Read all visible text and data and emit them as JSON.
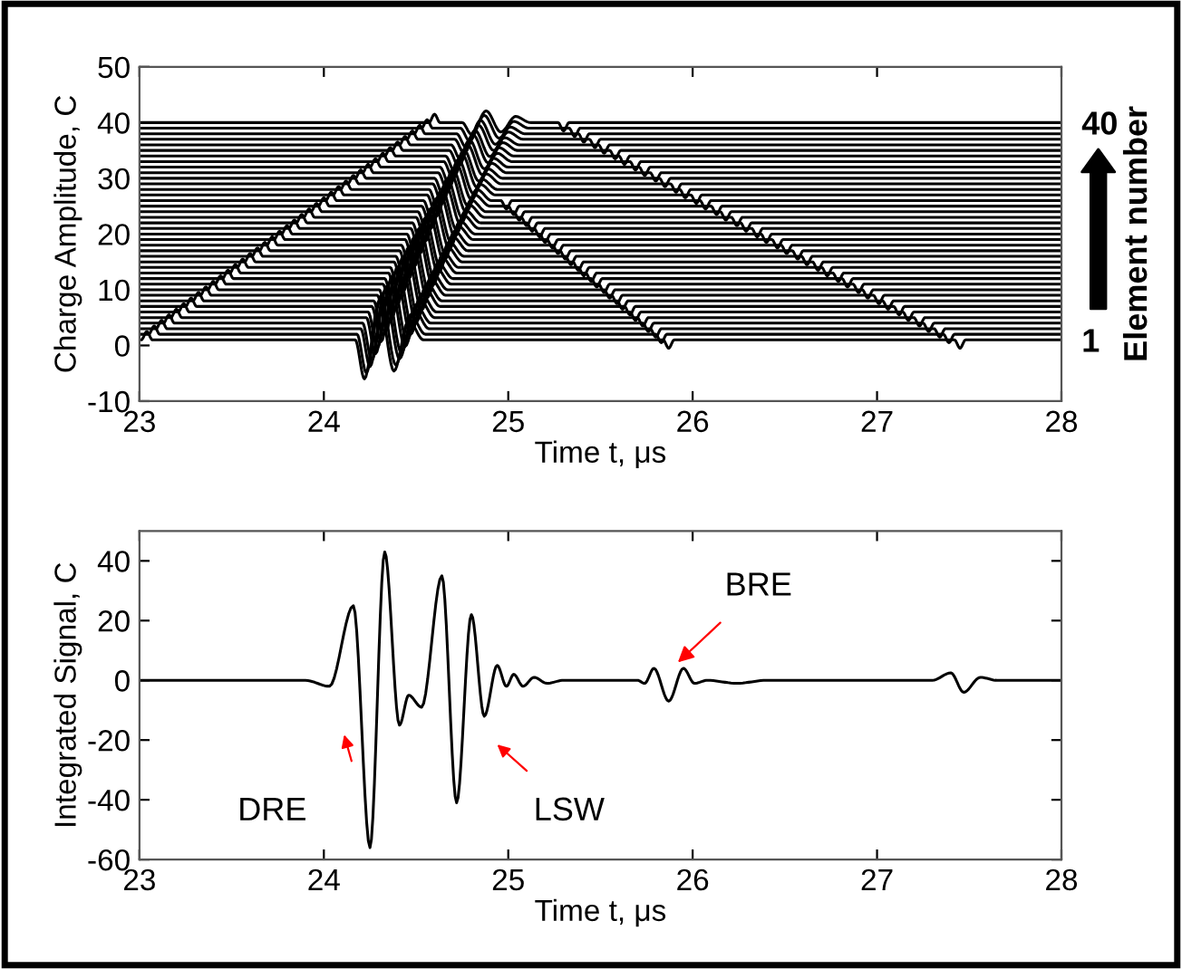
{
  "chart_data": [
    {
      "type": "line",
      "xlabel": "Time t, μs",
      "ylabel": "Charge Amplitude, C",
      "y2label": "Element number",
      "xlim": [
        23,
        28
      ],
      "xticks": [
        23,
        24,
        25,
        26,
        27,
        28
      ],
      "ylim": [
        -10,
        50
      ],
      "yticks": [
        -10,
        0,
        10,
        20,
        30,
        40,
        50
      ],
      "y2lim": [
        -10,
        50
      ],
      "y2ticks": [
        1,
        40
      ],
      "series": [
        {
          "color": "#000000",
          "x": [
            23,
            23.01,
            23.04,
            23.07,
            24.17,
            24.22,
            24.3,
            24.38,
            24.46,
            24.54,
            25.84,
            25.87,
            25.9,
            27.42,
            27.45,
            27.48,
            28
          ],
          "values": [
            1,
            1,
            2.5,
            1,
            1,
            -6,
            8,
            -4.6,
            4.5,
            1,
            1,
            -0.5,
            1,
            1,
            -0.5,
            1,
            1
          ]
        },
        {
          "color": "#000000",
          "x": [
            23,
            23.05,
            23.08,
            23.11,
            24.18,
            24.23,
            24.31,
            24.39,
            24.47,
            24.55,
            25.8,
            25.83,
            25.86,
            27.36,
            27.39,
            27.42,
            28
          ],
          "values": [
            2,
            2,
            3.5,
            2,
            2,
            -4.9,
            8.9,
            -3.5,
            5.5,
            2,
            2,
            0.5,
            2,
            2,
            0.5,
            2,
            2
          ]
        },
        {
          "color": "#000000",
          "x": [
            23,
            23.09,
            23.12,
            23.15,
            24.2,
            24.25,
            24.33,
            24.41,
            24.49,
            24.57,
            25.77,
            25.8,
            25.83,
            27.31,
            27.34,
            27.37,
            28
          ],
          "values": [
            3,
            3,
            4.5,
            3,
            3,
            -3.8,
            9.8,
            -2.4,
            6.4,
            3,
            3,
            1.5,
            3,
            3,
            1.5,
            3,
            3
          ]
        },
        {
          "color": "#000000",
          "x": [
            23,
            23.13,
            23.16,
            23.19,
            24.21,
            24.26,
            24.34,
            24.42,
            24.5,
            24.58,
            25.73,
            25.76,
            25.79,
            27.25,
            27.28,
            27.31,
            28
          ],
          "values": [
            4,
            4,
            5.5,
            4,
            4,
            -2.6,
            10.6,
            -1.3,
            7.3,
            4,
            4,
            2.5,
            4,
            4,
            2.5,
            4,
            4
          ]
        },
        {
          "color": "#000000",
          "x": [
            23,
            23.17,
            23.2,
            23.23,
            24.23,
            24.28,
            24.36,
            24.44,
            24.52,
            24.6,
            25.7,
            25.73,
            25.76,
            27.2,
            27.23,
            27.26,
            28
          ],
          "values": [
            5,
            5,
            6.5,
            5,
            5,
            -1.5,
            11.5,
            -0.2,
            8.3,
            5,
            5,
            3.5,
            5,
            5,
            3.5,
            5,
            5
          ]
        },
        {
          "color": "#000000",
          "x": [
            23,
            23.21,
            23.24,
            23.27,
            24.24,
            24.29,
            24.37,
            24.45,
            24.53,
            24.61,
            25.66,
            25.69,
            25.72,
            27.14,
            27.17,
            27.2,
            28
          ],
          "values": [
            6,
            6,
            7.5,
            6,
            6,
            -0.4,
            12.4,
            0.9,
            9.2,
            6,
            6,
            4.5,
            6,
            6,
            4.5,
            6,
            6
          ]
        },
        {
          "color": "#000000",
          "x": [
            23,
            23.25,
            23.28,
            23.31,
            24.26,
            24.31,
            24.39,
            24.47,
            24.55,
            24.63,
            25.63,
            25.66,
            25.69,
            27.09,
            27.12,
            27.15,
            28
          ],
          "values": [
            7,
            7,
            8.5,
            7,
            7,
            0.7,
            13.3,
            2.0,
            10.2,
            7,
            7,
            5.5,
            7,
            7,
            5.5,
            7,
            7
          ]
        },
        {
          "color": "#000000",
          "x": [
            23,
            23.29,
            23.32,
            23.35,
            24.27,
            24.32,
            24.4,
            24.48,
            24.56,
            24.64,
            25.59,
            25.62,
            25.65,
            27.03,
            27.06,
            27.09,
            28
          ],
          "values": [
            8,
            8,
            9.5,
            8,
            8,
            1.9,
            14.1,
            3.1,
            11.1,
            8,
            8,
            6.5,
            8,
            8,
            6.5,
            8,
            8
          ]
        },
        {
          "color": "#000000",
          "x": [
            23,
            23.33,
            23.36,
            23.39,
            24.29,
            24.34,
            24.42,
            24.5,
            24.58,
            24.66,
            25.56,
            25.59,
            25.62,
            26.98,
            27.01,
            27.04,
            28
          ],
          "values": [
            9,
            9,
            10.5,
            9,
            9,
            3,
            15,
            4.2,
            12,
            9,
            9,
            7.5,
            9,
            9,
            7.5,
            9,
            9
          ]
        },
        {
          "color": "#000000",
          "x": [
            23,
            23.37,
            23.4,
            23.43,
            24.3,
            24.35,
            24.43,
            24.51,
            24.59,
            24.67,
            25.52,
            25.55,
            25.58,
            26.92,
            26.95,
            26.98,
            28
          ],
          "values": [
            10,
            10,
            11.5,
            10,
            10,
            4.1,
            15.9,
            5.3,
            13.0,
            10,
            10,
            8.5,
            10,
            10,
            8.5,
            10,
            10
          ]
        },
        {
          "color": "#000000",
          "x": [
            23,
            23.41,
            23.44,
            23.47,
            24.32,
            24.37,
            24.45,
            24.53,
            24.61,
            24.69,
            25.49,
            25.52,
            25.55,
            26.87,
            26.9,
            26.93,
            28
          ],
          "values": [
            11,
            11,
            12.5,
            11,
            11,
            5.2,
            16.8,
            6.4,
            13.9,
            11,
            11,
            9.5,
            11,
            11,
            9.5,
            11,
            11
          ]
        },
        {
          "color": "#000000",
          "x": [
            23,
            23.45,
            23.48,
            23.51,
            24.33,
            24.38,
            24.46,
            24.54,
            24.62,
            24.7,
            25.45,
            25.48,
            25.51,
            26.81,
            26.84,
            26.87,
            28
          ],
          "values": [
            12,
            12,
            13.5,
            12,
            12,
            6.4,
            17.6,
            7.5,
            14.8,
            12,
            12,
            10.5,
            12,
            12,
            10.5,
            12,
            12
          ]
        },
        {
          "color": "#000000",
          "x": [
            23,
            23.49,
            23.52,
            23.55,
            24.35,
            24.4,
            24.48,
            24.56,
            24.64,
            24.72,
            25.42,
            25.45,
            25.48,
            26.76,
            26.79,
            26.82,
            28
          ],
          "values": [
            13,
            13,
            14.5,
            13,
            13,
            7.5,
            18.5,
            8.6,
            15.8,
            13,
            13,
            11.5,
            13,
            13,
            11.5,
            13,
            13
          ]
        },
        {
          "color": "#000000",
          "x": [
            23,
            23.53,
            23.56,
            23.59,
            24.36,
            24.41,
            24.49,
            24.57,
            24.65,
            24.73,
            25.38,
            25.41,
            25.44,
            26.7,
            26.73,
            26.76,
            28
          ],
          "values": [
            14,
            14,
            15.5,
            14,
            14,
            8.6,
            19.4,
            9.7,
            16.7,
            14,
            14,
            12.5,
            14,
            14,
            12.5,
            14,
            14
          ]
        },
        {
          "color": "#000000",
          "x": [
            23,
            23.57,
            23.6,
            23.63,
            24.38,
            24.43,
            24.51,
            24.59,
            24.67,
            24.75,
            25.35,
            25.38,
            25.41,
            26.65,
            26.68,
            26.71,
            28
          ],
          "values": [
            15,
            15,
            16.5,
            15,
            15,
            9.7,
            20.3,
            10.8,
            17.7,
            15,
            15,
            13.5,
            15,
            15,
            13.5,
            15,
            15
          ]
        },
        {
          "color": "#000000",
          "x": [
            23,
            23.61,
            23.64,
            23.67,
            24.39,
            24.44,
            24.52,
            24.6,
            24.68,
            24.76,
            25.31,
            25.34,
            25.37,
            26.59,
            26.62,
            26.65,
            28
          ],
          "values": [
            16,
            16,
            17.5,
            16,
            16,
            10.9,
            21.1,
            11.9,
            18.6,
            16,
            16,
            14.5,
            16,
            16,
            14.5,
            16,
            16
          ]
        },
        {
          "color": "#000000",
          "x": [
            23,
            23.65,
            23.68,
            23.71,
            24.41,
            24.46,
            24.54,
            24.62,
            24.7,
            24.78,
            25.28,
            25.31,
            25.34,
            26.54,
            26.57,
            26.6,
            28
          ],
          "values": [
            17,
            17,
            18.5,
            17,
            17,
            12,
            22,
            13,
            19.5,
            17,
            17,
            15.5,
            17,
            17,
            15.5,
            17,
            17
          ]
        },
        {
          "color": "#000000",
          "x": [
            23,
            23.69,
            23.72,
            23.75,
            24.42,
            24.47,
            24.55,
            24.63,
            24.71,
            24.79,
            25.24,
            25.27,
            25.3,
            26.48,
            26.51,
            26.54,
            28
          ],
          "values": [
            18,
            18,
            19.5,
            18,
            18,
            13.1,
            22.9,
            14.1,
            20.5,
            18,
            18,
            16.5,
            18,
            18,
            16.5,
            18,
            18
          ]
        },
        {
          "color": "#000000",
          "x": [
            23,
            23.73,
            23.76,
            23.79,
            24.44,
            24.49,
            24.57,
            24.65,
            24.73,
            24.81,
            25.21,
            25.24,
            25.27,
            26.43,
            26.46,
            26.49,
            28
          ],
          "values": [
            19,
            19,
            20.5,
            19,
            19,
            14.2,
            23.8,
            15.2,
            21.4,
            19,
            19,
            17.5,
            19,
            19,
            17.5,
            19,
            19
          ]
        },
        {
          "color": "#000000",
          "x": [
            23,
            23.77,
            23.8,
            23.83,
            24.45,
            24.5,
            24.58,
            24.66,
            24.74,
            24.82,
            25.17,
            25.2,
            25.23,
            26.37,
            26.4,
            26.43,
            28
          ],
          "values": [
            20,
            20,
            21.5,
            20,
            20,
            15.4,
            24.6,
            16.3,
            22.3,
            20,
            20,
            18.5,
            20,
            20,
            18.5,
            20,
            20
          ]
        },
        {
          "color": "#000000",
          "x": [
            23,
            23.81,
            23.84,
            23.87,
            24.47,
            24.52,
            24.6,
            24.68,
            24.76,
            24.84,
            25.14,
            25.17,
            25.2,
            26.32,
            26.35,
            26.38,
            28
          ],
          "values": [
            21,
            21,
            22.5,
            21,
            21,
            16.5,
            25.5,
            17.4,
            23.3,
            21,
            21,
            19.5,
            21,
            21,
            19.5,
            21,
            21
          ]
        },
        {
          "color": "#000000",
          "x": [
            23,
            23.85,
            23.88,
            23.91,
            24.48,
            24.53,
            24.61,
            24.69,
            24.77,
            24.85,
            25.1,
            25.13,
            25.16,
            26.26,
            26.29,
            26.32,
            28
          ],
          "values": [
            22,
            22,
            23.5,
            22,
            22,
            17.6,
            26.4,
            18.5,
            24.2,
            22,
            22,
            20.5,
            22,
            22,
            20.5,
            22,
            22
          ]
        },
        {
          "color": "#000000",
          "x": [
            23,
            23.89,
            23.92,
            23.95,
            24.5,
            24.55,
            24.63,
            24.71,
            24.79,
            24.87,
            25.07,
            25.1,
            25.13,
            26.21,
            26.24,
            26.27,
            28
          ],
          "values": [
            23,
            23,
            24.5,
            23,
            23,
            18.7,
            27.3,
            19.6,
            25.2,
            23,
            23,
            21.5,
            23,
            23,
            21.5,
            23,
            23
          ]
        },
        {
          "color": "#000000",
          "x": [
            23,
            23.93,
            23.96,
            23.99,
            24.51,
            24.56,
            24.64,
            24.72,
            24.8,
            24.88,
            25.03,
            25.06,
            25.09,
            26.15,
            26.18,
            26.21,
            28
          ],
          "values": [
            24,
            24,
            25.5,
            24,
            24,
            19.9,
            28.1,
            20.7,
            26.1,
            24,
            24,
            22.5,
            24,
            24,
            22.5,
            24,
            24
          ]
        },
        {
          "color": "#000000",
          "x": [
            23,
            23.97,
            24.0,
            24.03,
            24.53,
            24.58,
            24.66,
            24.74,
            24.82,
            24.9,
            25.0,
            25.03,
            25.06,
            26.1,
            26.13,
            26.16,
            28
          ],
          "values": [
            25,
            25,
            26.5,
            25,
            25,
            21,
            29,
            21.8,
            27,
            25,
            25,
            23.5,
            25,
            25,
            23.5,
            25,
            25
          ]
        },
        {
          "color": "#000000",
          "x": [
            23,
            24.01,
            24.04,
            24.07,
            24.54,
            24.59,
            24.67,
            24.75,
            24.83,
            24.91,
            24.96,
            24.99,
            25.02,
            26.04,
            26.07,
            26.1,
            28
          ],
          "values": [
            26,
            26,
            27.5,
            26,
            26,
            22.1,
            29.9,
            22.9,
            28.0,
            26,
            26,
            24.5,
            26,
            26,
            24.5,
            26,
            26
          ]
        },
        {
          "color": "#000000",
          "x": [
            23,
            24.05,
            24.08,
            24.11,
            24.56,
            24.61,
            24.69,
            24.77,
            24.85,
            24.93,
            25.99,
            26.02,
            26.05,
            28
          ],
          "values": [
            27,
            27,
            28.5,
            27,
            27,
            23.2,
            30.8,
            24.0,
            28.9,
            27,
            27,
            25.5,
            27,
            27
          ]
        },
        {
          "color": "#000000",
          "x": [
            23,
            24.09,
            24.12,
            24.15,
            24.57,
            24.62,
            24.7,
            24.78,
            24.86,
            24.94,
            25.93,
            25.96,
            25.99,
            28
          ],
          "values": [
            28,
            28,
            29.5,
            28,
            28,
            24.4,
            31.6,
            25.1,
            29.8,
            28,
            28,
            26.5,
            28,
            28
          ]
        },
        {
          "color": "#000000",
          "x": [
            23,
            24.13,
            24.16,
            24.19,
            24.59,
            24.64,
            24.72,
            24.8,
            24.88,
            24.96,
            25.88,
            25.91,
            25.94,
            28
          ],
          "values": [
            29,
            29,
            30.5,
            29,
            29,
            25.5,
            32.5,
            26.2,
            30.8,
            29,
            29,
            27.5,
            29,
            29
          ]
        },
        {
          "color": "#000000",
          "x": [
            23,
            24.17,
            24.2,
            24.23,
            24.6,
            24.65,
            24.73,
            24.81,
            24.89,
            24.97,
            25.82,
            25.85,
            25.88,
            28
          ],
          "values": [
            30,
            30,
            31.5,
            30,
            30,
            26.6,
            33.4,
            27.3,
            31.7,
            30,
            30,
            28.5,
            30,
            30
          ]
        },
        {
          "color": "#000000",
          "x": [
            23,
            24.21,
            24.24,
            24.27,
            24.62,
            24.67,
            24.75,
            24.83,
            24.91,
            24.99,
            25.77,
            25.8,
            25.83,
            28
          ],
          "values": [
            31,
            31,
            32.5,
            31,
            31,
            27.7,
            34.3,
            28.4,
            32.7,
            31,
            31,
            29.5,
            31,
            31
          ]
        },
        {
          "color": "#000000",
          "x": [
            23,
            24.25,
            24.28,
            24.31,
            24.63,
            24.68,
            24.76,
            24.84,
            24.92,
            25.0,
            25.71,
            25.74,
            25.77,
            28
          ],
          "values": [
            32,
            32,
            33.5,
            32,
            32,
            28.9,
            35.1,
            29.5,
            33.6,
            32,
            32,
            30.5,
            32,
            32
          ]
        },
        {
          "color": "#000000",
          "x": [
            23,
            24.29,
            24.32,
            24.35,
            24.65,
            24.7,
            24.78,
            24.86,
            24.94,
            25.02,
            25.66,
            25.69,
            25.72,
            28
          ],
          "values": [
            33,
            33,
            34.5,
            33,
            33,
            30,
            36,
            30.6,
            34.5,
            33,
            33,
            31.5,
            33,
            33
          ]
        },
        {
          "color": "#000000",
          "x": [
            23,
            24.33,
            24.36,
            24.39,
            24.66,
            24.71,
            24.79,
            24.87,
            24.95,
            25.03,
            25.6,
            25.63,
            25.66,
            28
          ],
          "values": [
            34,
            34,
            35.5,
            34,
            34,
            31.1,
            36.9,
            31.7,
            35.5,
            34,
            34,
            32.5,
            34,
            34
          ]
        },
        {
          "color": "#000000",
          "x": [
            23,
            24.37,
            24.4,
            24.43,
            24.68,
            24.73,
            24.81,
            24.89,
            24.97,
            25.05,
            25.55,
            25.58,
            25.61,
            28
          ],
          "values": [
            35,
            35,
            36.5,
            35,
            35,
            32.2,
            37.8,
            32.8,
            36.4,
            35,
            35,
            33.5,
            35,
            35
          ]
        },
        {
          "color": "#000000",
          "x": [
            23,
            24.41,
            24.44,
            24.47,
            24.69,
            24.74,
            24.82,
            24.9,
            24.98,
            25.06,
            25.49,
            25.52,
            25.55,
            28
          ],
          "values": [
            36,
            36,
            37.5,
            36,
            36,
            33.4,
            38.6,
            33.9,
            37.3,
            36,
            36,
            34.5,
            36,
            36
          ]
        },
        {
          "color": "#000000",
          "x": [
            23,
            24.45,
            24.48,
            24.51,
            24.71,
            24.76,
            24.84,
            24.92,
            25.0,
            25.08,
            25.44,
            25.47,
            25.5,
            28
          ],
          "values": [
            37,
            37,
            38.5,
            37,
            37,
            34.5,
            39.5,
            35,
            38.3,
            37,
            37,
            35.5,
            37,
            37
          ]
        },
        {
          "color": "#000000",
          "x": [
            23,
            24.49,
            24.52,
            24.55,
            24.72,
            24.77,
            24.85,
            24.93,
            25.01,
            25.09,
            25.38,
            25.41,
            25.44,
            28
          ],
          "values": [
            38,
            38,
            39.5,
            38,
            38,
            35.6,
            40.4,
            36.1,
            39.2,
            38,
            38,
            36.5,
            38,
            38
          ]
        },
        {
          "color": "#000000",
          "x": [
            23,
            24.53,
            24.56,
            24.59,
            24.74,
            24.79,
            24.87,
            24.95,
            25.03,
            25.11,
            25.33,
            25.36,
            25.39,
            28
          ],
          "values": [
            39,
            39,
            40.5,
            39,
            39,
            36.7,
            41.3,
            37.2,
            40.2,
            39,
            39,
            37.5,
            39,
            39
          ]
        },
        {
          "color": "#000000",
          "x": [
            23,
            24.57,
            24.6,
            24.63,
            24.75,
            24.8,
            24.88,
            24.96,
            25.04,
            25.12,
            25.27,
            25.3,
            25.33,
            28
          ],
          "values": [
            40,
            40,
            41.5,
            40,
            40,
            37.9,
            42.1,
            38.3,
            41.1,
            40,
            40,
            38.5,
            40,
            40
          ]
        }
      ]
    },
    {
      "type": "line",
      "xlabel": "Time t, μs",
      "ylabel": "Integrated Signal, C",
      "xlim": [
        23,
        28
      ],
      "xticks": [
        23,
        24,
        25,
        26,
        27,
        28
      ],
      "ylim": [
        -60,
        50
      ],
      "yticks": [
        -60,
        -40,
        -20,
        0,
        20,
        40
      ],
      "annotations": [
        "DRE",
        "LSW",
        {
          "text": "BRE",
          "x": 25.92,
          "y": 6
        }
      ],
      "series": [
        {
          "color": "#000000",
          "x": [
            23,
            23.9,
            24.03,
            24.16,
            24.25,
            24.33,
            24.41,
            24.46,
            24.53,
            24.64,
            24.72,
            24.8,
            24.87,
            24.94,
            24.99,
            25.03,
            25.08,
            25.14,
            25.21,
            25.3,
            25.7,
            25.74,
            25.79,
            25.87,
            25.95,
            26.01,
            26.08,
            26.24,
            26.4,
            27.3,
            27.4,
            27.47,
            27.56,
            27.65,
            28
          ],
          "values": [
            0,
            0,
            -2,
            25,
            -56,
            43,
            -15,
            -5,
            -9,
            35,
            -41,
            22,
            -12,
            5,
            -2,
            2,
            -2,
            1,
            -1,
            0,
            0,
            -1,
            4,
            -7,
            4,
            -1,
            0,
            -1,
            0,
            0,
            2.5,
            -4,
            1,
            0,
            0
          ]
        }
      ]
    }
  ]
}
